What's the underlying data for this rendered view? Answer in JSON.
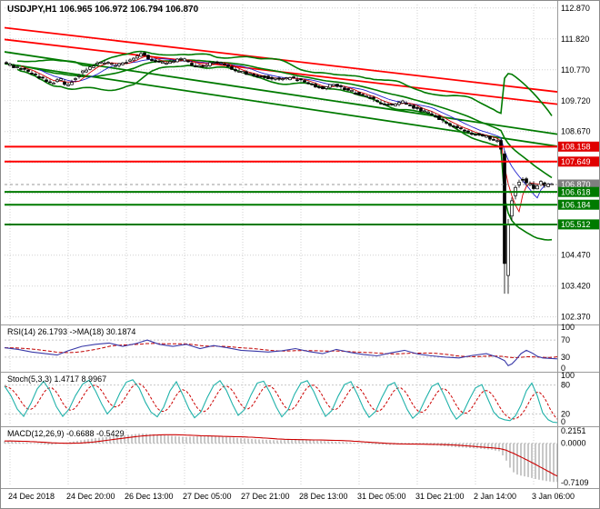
{
  "titlebar": {
    "text": "USDJPY,H1 106.965 106.972 106.794 106.870"
  },
  "symbol": {
    "name": "USDJPY",
    "timeframe": "H1",
    "open": "106.965",
    "high": "106.972",
    "low": "106.794",
    "close": "106.870"
  },
  "colors": {
    "background": "#ffffff",
    "grid": "#d0d0d0",
    "separator": "#9a9a9a",
    "candle_bull": "#ffffff",
    "candle_bear": "#000000",
    "candle_outline": "#000000",
    "bollinger": "#007a00",
    "ma_fast": "#d40000",
    "ma_slow": "#2222cc",
    "resistance": "#ff0000",
    "support": "#007a00",
    "current_badge_bg": "#7f7f7f",
    "resistance_badge_bg": "#e00000",
    "support_badge_bg": "#007a00",
    "rsi_line": "#3939a8",
    "rsi_ma": "#c00000",
    "stoch_k": "#20b2aa",
    "stoch_d": "#cc0000",
    "macd_hist": "#909090",
    "macd_signal": "#cc0000",
    "axis_text": "#000000"
  },
  "chart_data": {
    "type": "candlestick",
    "title": "USDJPY,H1 106.965 106.972 106.794 106.870",
    "price_axis": {
      "ticks": [
        {
          "price": 112.87,
          "label": "112.870"
        },
        {
          "price": 111.82,
          "label": "111.820"
        },
        {
          "price": 110.77,
          "label": "110.770"
        },
        {
          "price": 109.72,
          "label": "109.720"
        },
        {
          "price": 108.67,
          "label": "108.670"
        },
        {
          "price": 104.47,
          "label": "104.470"
        },
        {
          "price": 103.42,
          "label": "103.420"
        },
        {
          "price": 102.37,
          "label": "102.370"
        }
      ],
      "grid_only_prices": [
        107.62,
        106.57,
        105.52
      ],
      "current": {
        "price": 106.87,
        "label": "106.870"
      }
    },
    "levels": {
      "resistance": [
        {
          "price": 108.158,
          "label": "108.158"
        },
        {
          "price": 107.649,
          "label": "107.649"
        }
      ],
      "support": [
        {
          "price": 106.618,
          "label": "106.618"
        },
        {
          "price": 106.184,
          "label": "106.184"
        },
        {
          "price": 105.512,
          "label": "105.512"
        }
      ]
    },
    "trendlines": {
      "red": [
        {
          "p1": [
            0,
            112.2
          ],
          "p2": [
            612,
            110.02
          ]
        },
        {
          "p1": [
            0,
            111.8
          ],
          "p2": [
            612,
            109.6
          ]
        }
      ],
      "green": [
        {
          "p1": [
            0,
            111.38
          ],
          "p2": [
            612,
            108.58
          ]
        },
        {
          "p1": [
            0,
            110.98
          ],
          "p2": [
            612,
            108.17
          ]
        }
      ]
    },
    "price_path": [
      [
        0,
        111.05
      ],
      [
        12,
        110.92
      ],
      [
        25,
        110.78
      ],
      [
        38,
        110.62
      ],
      [
        50,
        110.42
      ],
      [
        58,
        110.3
      ],
      [
        66,
        110.48
      ],
      [
        74,
        110.22
      ],
      [
        82,
        110.45
      ],
      [
        92,
        110.72
      ],
      [
        104,
        110.95
      ],
      [
        116,
        111.05
      ],
      [
        128,
        110.9
      ],
      [
        140,
        111.05
      ],
      [
        150,
        111.22
      ],
      [
        157,
        111.35
      ],
      [
        163,
        111.18
      ],
      [
        172,
        111.05
      ],
      [
        182,
        111.0
      ],
      [
        192,
        111.08
      ],
      [
        202,
        111.12
      ],
      [
        212,
        110.95
      ],
      [
        222,
        110.85
      ],
      [
        232,
        110.98
      ],
      [
        242,
        111.02
      ],
      [
        252,
        110.88
      ],
      [
        262,
        110.72
      ],
      [
        274,
        110.62
      ],
      [
        286,
        110.55
      ],
      [
        298,
        110.48
      ],
      [
        310,
        110.42
      ],
      [
        322,
        110.5
      ],
      [
        334,
        110.38
      ],
      [
        346,
        110.22
      ],
      [
        356,
        110.15
      ],
      [
        366,
        110.28
      ],
      [
        376,
        110.15
      ],
      [
        386,
        110.05
      ],
      [
        396,
        109.92
      ],
      [
        406,
        109.85
      ],
      [
        414,
        109.7
      ],
      [
        424,
        109.62
      ],
      [
        434,
        109.55
      ],
      [
        444,
        109.68
      ],
      [
        452,
        109.55
      ],
      [
        462,
        109.42
      ],
      [
        472,
        109.3
      ],
      [
        480,
        109.18
      ],
      [
        488,
        109.02
      ],
      [
        496,
        108.88
      ],
      [
        504,
        108.78
      ],
      [
        512,
        108.68
      ],
      [
        520,
        108.6
      ],
      [
        528,
        108.55
      ],
      [
        536,
        108.48
      ],
      [
        544,
        108.4
      ],
      [
        550,
        108.3
      ],
      [
        553,
        107.8
      ],
      [
        555,
        104.9
      ],
      [
        556,
        103.2
      ],
      [
        558,
        105.2
      ],
      [
        561,
        105.9
      ],
      [
        564,
        106.4
      ],
      [
        568,
        106.8
      ],
      [
        572,
        107.0
      ],
      [
        576,
        107.1
      ],
      [
        580,
        106.85
      ],
      [
        584,
        106.95
      ],
      [
        588,
        106.72
      ],
      [
        592,
        106.88
      ],
      [
        596,
        106.95
      ],
      [
        600,
        106.8
      ],
      [
        604,
        106.9
      ],
      [
        608,
        106.87
      ]
    ],
    "rsi": {
      "label": "RSI(14) 26.1793 ->MA(18) 30.1874",
      "value": 26.1793,
      "ma_value": 30.1874,
      "scale": [
        {
          "v": 100,
          "label": "100"
        },
        {
          "v": 70,
          "label": "70"
        },
        {
          "v": 30,
          "label": "30"
        },
        {
          "v": 0,
          "label": "0"
        }
      ],
      "dotted_levels": [
        70,
        30
      ],
      "points": [
        [
          0,
          52
        ],
        [
          15,
          48
        ],
        [
          30,
          42
        ],
        [
          45,
          38
        ],
        [
          58,
          35
        ],
        [
          70,
          45
        ],
        [
          85,
          55
        ],
        [
          100,
          60
        ],
        [
          115,
          63
        ],
        [
          130,
          55
        ],
        [
          145,
          62
        ],
        [
          157,
          70
        ],
        [
          170,
          60
        ],
        [
          185,
          55
        ],
        [
          200,
          60
        ],
        [
          215,
          50
        ],
        [
          230,
          57
        ],
        [
          245,
          52
        ],
        [
          260,
          46
        ],
        [
          275,
          44
        ],
        [
          290,
          42
        ],
        [
          305,
          45
        ],
        [
          320,
          50
        ],
        [
          335,
          43
        ],
        [
          350,
          38
        ],
        [
          365,
          48
        ],
        [
          380,
          41
        ],
        [
          395,
          36
        ],
        [
          410,
          33
        ],
        [
          425,
          40
        ],
        [
          440,
          46
        ],
        [
          455,
          37
        ],
        [
          470,
          33
        ],
        [
          485,
          30
        ],
        [
          500,
          28
        ],
        [
          515,
          34
        ],
        [
          530,
          38
        ],
        [
          542,
          30
        ],
        [
          550,
          22
        ],
        [
          554,
          10
        ],
        [
          558,
          14
        ],
        [
          563,
          25
        ],
        [
          568,
          38
        ],
        [
          574,
          46
        ],
        [
          580,
          40
        ],
        [
          586,
          32
        ],
        [
          592,
          28
        ],
        [
          600,
          27
        ],
        [
          608,
          26
        ]
      ]
    },
    "stoch": {
      "label": "Stoch(5,3,3) 1.4717 8.9967",
      "k_value": 1.4717,
      "d_value": 8.9967,
      "scale": [
        {
          "v": 100,
          "label": "100"
        },
        {
          "v": 80,
          "label": "80"
        },
        {
          "v": 20,
          "label": "20"
        },
        {
          "v": 0,
          "label": "0"
        }
      ],
      "dotted_levels": [
        80,
        20
      ],
      "points": [
        [
          0,
          78
        ],
        [
          7,
          58
        ],
        [
          14,
          30
        ],
        [
          21,
          15
        ],
        [
          29,
          42
        ],
        [
          36,
          72
        ],
        [
          43,
          88
        ],
        [
          50,
          68
        ],
        [
          57,
          35
        ],
        [
          64,
          15
        ],
        [
          71,
          30
        ],
        [
          78,
          58
        ],
        [
          86,
          82
        ],
        [
          93,
          90
        ],
        [
          100,
          68
        ],
        [
          107,
          40
        ],
        [
          113,
          20
        ],
        [
          120,
          35
        ],
        [
          127,
          64
        ],
        [
          134,
          86
        ],
        [
          141,
          91
        ],
        [
          148,
          74
        ],
        [
          155,
          44
        ],
        [
          161,
          24
        ],
        [
          168,
          14
        ],
        [
          175,
          34
        ],
        [
          182,
          68
        ],
        [
          189,
          87
        ],
        [
          196,
          60
        ],
        [
          203,
          30
        ],
        [
          209,
          12
        ],
        [
          216,
          24
        ],
        [
          223,
          54
        ],
        [
          230,
          79
        ],
        [
          237,
          89
        ],
        [
          244,
          69
        ],
        [
          251,
          39
        ],
        [
          257,
          17
        ],
        [
          264,
          29
        ],
        [
          271,
          59
        ],
        [
          278,
          84
        ],
        [
          285,
          88
        ],
        [
          292,
          64
        ],
        [
          299,
          34
        ],
        [
          305,
          14
        ],
        [
          312,
          29
        ],
        [
          319,
          61
        ],
        [
          326,
          84
        ],
        [
          333,
          89
        ],
        [
          340,
          67
        ],
        [
          347,
          37
        ],
        [
          353,
          15
        ],
        [
          360,
          27
        ],
        [
          367,
          57
        ],
        [
          374,
          81
        ],
        [
          381,
          87
        ],
        [
          388,
          61
        ],
        [
          395,
          31
        ],
        [
          401,
          13
        ],
        [
          408,
          25
        ],
        [
          415,
          54
        ],
        [
          422,
          79
        ],
        [
          429,
          85
        ],
        [
          436,
          59
        ],
        [
          443,
          29
        ],
        [
          449,
          11
        ],
        [
          456,
          23
        ],
        [
          463,
          51
        ],
        [
          470,
          77
        ],
        [
          477,
          84
        ],
        [
          484,
          57
        ],
        [
          491,
          27
        ],
        [
          497,
          9
        ],
        [
          504,
          21
        ],
        [
          511,
          49
        ],
        [
          518,
          74
        ],
        [
          525,
          81
        ],
        [
          531,
          54
        ],
        [
          538,
          24
        ],
        [
          544,
          12
        ],
        [
          550,
          8
        ],
        [
          556,
          6
        ],
        [
          562,
          16
        ],
        [
          568,
          38
        ],
        [
          574,
          68
        ],
        [
          580,
          84
        ],
        [
          586,
          58
        ],
        [
          592,
          22
        ],
        [
          598,
          8
        ],
        [
          603,
          3
        ],
        [
          608,
          2
        ]
      ]
    },
    "macd": {
      "label": "MACD(12,26,9) -0.6688 -0.5429",
      "value": -0.6688,
      "signal_value": -0.5429,
      "scale": [
        {
          "v": 0.2151,
          "label": "0.2151"
        },
        {
          "v": 0.0,
          "label": "0.0000"
        },
        {
          "v": -0.7109,
          "label": "-0.7109"
        }
      ],
      "points": [
        [
          0,
          0.04
        ],
        [
          25,
          0.01
        ],
        [
          50,
          -0.03
        ],
        [
          75,
          0.03
        ],
        [
          100,
          0.09
        ],
        [
          125,
          0.13
        ],
        [
          150,
          0.17
        ],
        [
          175,
          0.14
        ],
        [
          200,
          0.11
        ],
        [
          225,
          0.13
        ],
        [
          250,
          0.1
        ],
        [
          275,
          0.07
        ],
        [
          300,
          0.05
        ],
        [
          325,
          0.07
        ],
        [
          350,
          0.04
        ],
        [
          375,
          0.02
        ],
        [
          400,
          -0.01
        ],
        [
          425,
          -0.03
        ],
        [
          450,
          0.0
        ],
        [
          475,
          -0.04
        ],
        [
          500,
          -0.07
        ],
        [
          520,
          -0.09
        ],
        [
          535,
          -0.11
        ],
        [
          545,
          -0.14
        ],
        [
          552,
          -0.3
        ],
        [
          558,
          -0.48
        ],
        [
          565,
          -0.55
        ],
        [
          575,
          -0.58
        ],
        [
          585,
          -0.62
        ],
        [
          595,
          -0.65
        ],
        [
          603,
          -0.668
        ],
        [
          608,
          -0.669
        ]
      ]
    },
    "time_axis": {
      "labels": [
        "24 Dec 2018",
        "24 Dec 20:00",
        "26 Dec 13:00",
        "27 Dec 05:00",
        "27 Dec 21:00",
        "28 Dec 13:00",
        "31 Dec 05:00",
        "31 Dec 21:00",
        "2 Jan 14:00",
        "3 Jan 06:00"
      ]
    }
  }
}
